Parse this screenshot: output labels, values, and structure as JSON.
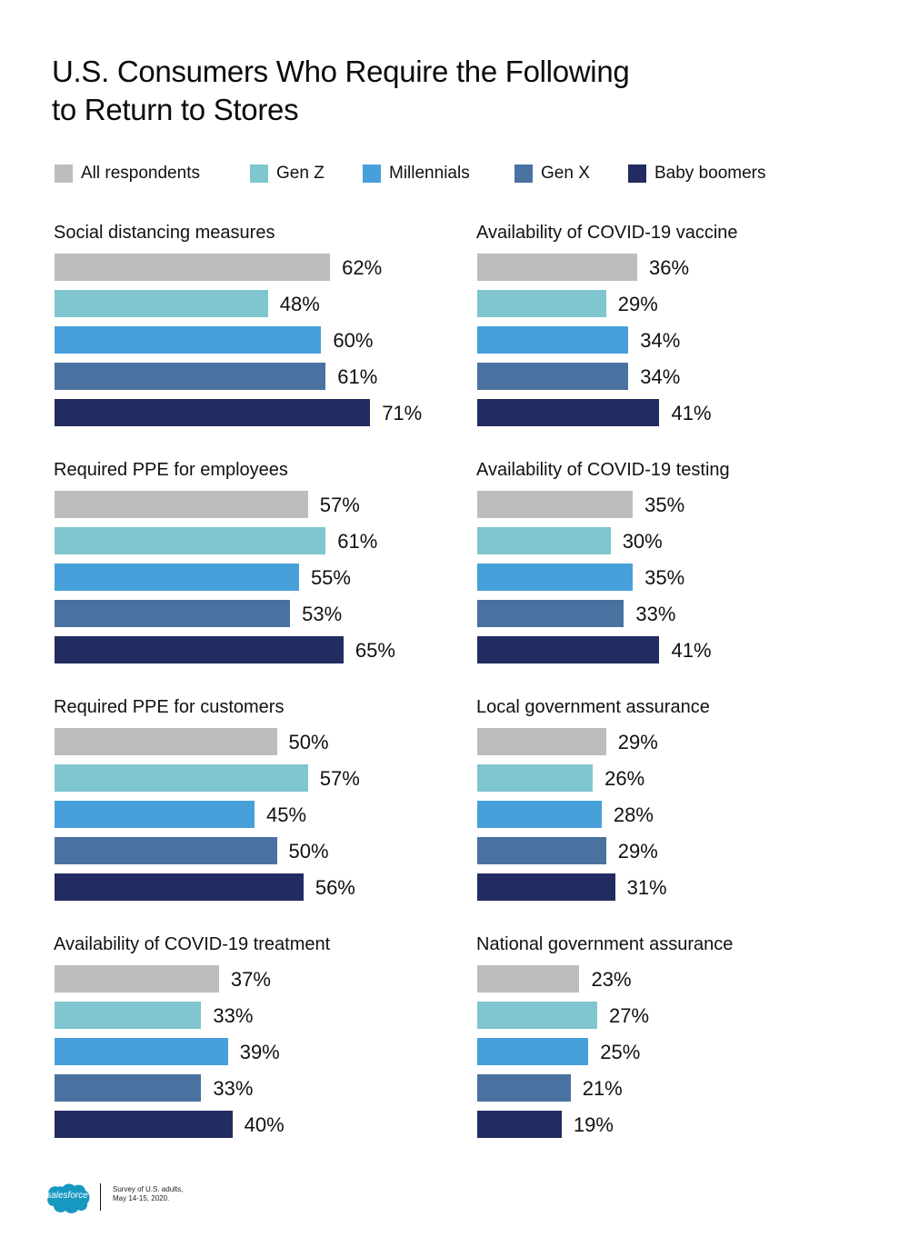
{
  "chart_data": {
    "type": "bar",
    "orientation": "horizontal",
    "title": "U.S. Consumers Who Require the Following to Return to Stores",
    "xlabel": "",
    "ylabel": "",
    "xlim": [
      0,
      100
    ],
    "grid": false,
    "legend_position": "top",
    "series_names": [
      "All respondents",
      "Gen Z",
      "Millennials",
      "Gen X",
      "Baby boomers"
    ],
    "series_colors": [
      "#bcbdbf",
      "#7fc6cf",
      "#47a0d9",
      "#4a72a1",
      "#232c60"
    ],
    "panels": [
      {
        "category": "Social distancing measures",
        "values": [
          62,
          48,
          60,
          61,
          71
        ]
      },
      {
        "category": "Availability of COVID-19 vaccine",
        "values": [
          36,
          29,
          34,
          34,
          41
        ]
      },
      {
        "category": "Required PPE for employees",
        "values": [
          57,
          61,
          55,
          53,
          65
        ]
      },
      {
        "category": "Availability of COVID-19 testing",
        "values": [
          35,
          30,
          35,
          33,
          41
        ]
      },
      {
        "category": "Required PPE for customers",
        "values": [
          50,
          57,
          45,
          50,
          56
        ]
      },
      {
        "category": "Local government assurance",
        "values": [
          29,
          26,
          28,
          29,
          31
        ]
      },
      {
        "category": "Availability of COVID-19 treatment",
        "values": [
          37,
          33,
          39,
          33,
          40
        ]
      },
      {
        "category": "National government assurance",
        "values": [
          23,
          27,
          25,
          21,
          19
        ]
      }
    ],
    "value_suffix": "%"
  },
  "header": {
    "title_line1": "U.S. Consumers Who Require the Following",
    "title_line2": "to Return to Stores"
  },
  "legend": [
    {
      "label": "All respondents",
      "color": "#bcbdbf"
    },
    {
      "label": "Gen Z",
      "color": "#7fc6cf"
    },
    {
      "label": "Millennials",
      "color": "#47a0d9"
    },
    {
      "label": "Gen X",
      "color": "#4a72a1"
    },
    {
      "label": "Baby boomers",
      "color": "#232c60"
    }
  ],
  "footer": {
    "logo_text": "salesforce",
    "logo_color": "#1798c1",
    "note_line1": "Survey of U.S. adults,",
    "note_line2": "May 14-15, 2020."
  }
}
